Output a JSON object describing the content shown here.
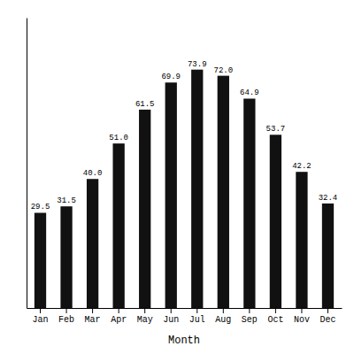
{
  "chart_data": {
    "type": "bar",
    "categories": [
      "Jan",
      "Feb",
      "Mar",
      "Apr",
      "May",
      "Jun",
      "Jul",
      "Aug",
      "Sep",
      "Oct",
      "Nov",
      "Dec"
    ],
    "values": [
      29.5,
      31.5,
      40.0,
      51.0,
      61.5,
      69.9,
      73.9,
      72.0,
      64.9,
      53.7,
      42.2,
      32.4
    ],
    "value_labels": [
      "29.5",
      "31.5",
      "40.0",
      "51.0",
      "61.5",
      "69.9",
      "73.9",
      "72.0",
      "64.9",
      "53.7",
      "42.2",
      "32.4"
    ],
    "data_labels": true,
    "color": "#111111",
    "x_label": "Month",
    "ylim": [
      0,
      90
    ],
    "grid": false,
    "tick_labels": "x"
  }
}
